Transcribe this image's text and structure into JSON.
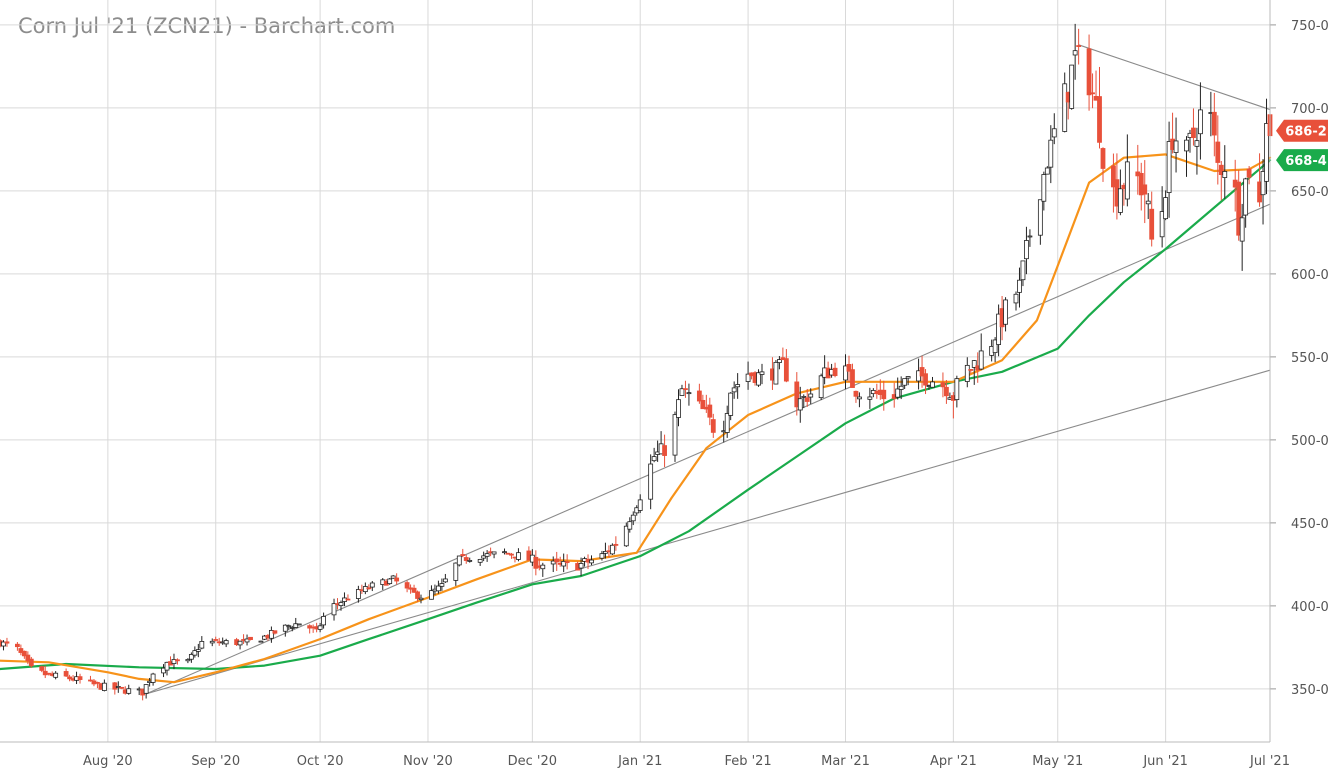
{
  "chart_data": {
    "type": "candlestick",
    "title": "Corn Jul '21 (ZCN21) - Barchart.com",
    "xlabel": "",
    "ylabel": "",
    "x_range": [
      "2020-07-01",
      "2021-07-01"
    ],
    "y_range": [
      318,
      765
    ],
    "y_ticks": [
      {
        "value": 350,
        "label": "350-0"
      },
      {
        "value": 400,
        "label": "400-0"
      },
      {
        "value": 450,
        "label": "450-0"
      },
      {
        "value": 500,
        "label": "500-0"
      },
      {
        "value": 550,
        "label": "550-0"
      },
      {
        "value": 600,
        "label": "600-0"
      },
      {
        "value": 650,
        "label": "650-0"
      },
      {
        "value": 700,
        "label": "700-0"
      },
      {
        "value": 750,
        "label": "750-0"
      }
    ],
    "x_ticks": [
      {
        "date": "2020-08-01",
        "label": "Aug '20"
      },
      {
        "date": "2020-09-01",
        "label": "Sep '20"
      },
      {
        "date": "2020-10-01",
        "label": "Oct '20"
      },
      {
        "date": "2020-11-01",
        "label": "Nov '20"
      },
      {
        "date": "2020-12-01",
        "label": "Dec '20"
      },
      {
        "date": "2021-01-01",
        "label": "Jan '21"
      },
      {
        "date": "2021-02-01",
        "label": "Feb '21"
      },
      {
        "date": "2021-03-01",
        "label": "Mar '21"
      },
      {
        "date": "2021-04-01",
        "label": "Apr '21"
      },
      {
        "date": "2021-05-01",
        "label": "May '21"
      },
      {
        "date": "2021-06-01",
        "label": "Jun '21"
      },
      {
        "date": "2021-07-01",
        "label": "Jul '21"
      }
    ],
    "grid": true,
    "colors": {
      "up": "#ffffff",
      "up_border": "#222222",
      "down": "#e8503a",
      "ma_fast": "#f7931a",
      "ma_slow": "#1aab4b",
      "trend": "#8a8a8a",
      "grid": "#d9d9d9"
    },
    "close_path": [
      [
        "2020-07-01",
        378
      ],
      [
        "2020-07-06",
        374
      ],
      [
        "2020-07-10",
        362
      ],
      [
        "2020-07-15",
        358
      ],
      [
        "2020-07-20",
        357
      ],
      [
        "2020-07-24",
        355
      ],
      [
        "2020-07-29",
        352
      ],
      [
        "2020-08-03",
        350
      ],
      [
        "2020-08-07",
        349
      ],
      [
        "2020-08-11",
        348
      ],
      [
        "2020-08-14",
        360
      ],
      [
        "2020-08-18",
        366
      ],
      [
        "2020-08-24",
        366
      ],
      [
        "2020-08-28",
        378
      ],
      [
        "2020-09-03",
        378
      ],
      [
        "2020-09-10",
        378
      ],
      [
        "2020-09-16",
        382
      ],
      [
        "2020-09-22",
        388
      ],
      [
        "2020-09-26",
        390
      ],
      [
        "2020-09-30",
        384
      ],
      [
        "2020-10-03",
        398
      ],
      [
        "2020-10-09",
        405
      ],
      [
        "2020-10-16",
        412
      ],
      [
        "2020-10-22",
        416
      ],
      [
        "2020-10-27",
        408
      ],
      [
        "2020-10-31",
        405
      ],
      [
        "2020-11-05",
        412
      ],
      [
        "2020-11-10",
        428
      ],
      [
        "2020-11-16",
        430
      ],
      [
        "2020-11-23",
        432
      ],
      [
        "2020-11-28",
        430
      ],
      [
        "2020-12-03",
        425
      ],
      [
        "2020-12-09",
        424
      ],
      [
        "2020-12-15",
        425
      ],
      [
        "2020-12-21",
        430
      ],
      [
        "2020-12-26",
        440
      ],
      [
        "2020-12-31",
        462
      ],
      [
        "2021-01-05",
        490
      ],
      [
        "2021-01-09",
        496
      ],
      [
        "2021-01-13",
        530
      ],
      [
        "2021-01-16",
        525
      ],
      [
        "2021-01-20",
        515
      ],
      [
        "2021-01-24",
        500
      ],
      [
        "2021-01-27",
        530
      ],
      [
        "2021-02-01",
        540
      ],
      [
        "2021-02-06",
        538
      ],
      [
        "2021-02-11",
        545
      ],
      [
        "2021-02-15",
        522
      ],
      [
        "2021-02-19",
        528
      ],
      [
        "2021-02-23",
        540
      ],
      [
        "2021-02-28",
        545
      ],
      [
        "2021-03-04",
        530
      ],
      [
        "2021-03-09",
        528
      ],
      [
        "2021-03-14",
        525
      ],
      [
        "2021-03-18",
        535
      ],
      [
        "2021-03-23",
        538
      ],
      [
        "2021-03-28",
        535
      ],
      [
        "2021-04-01",
        527
      ],
      [
        "2021-04-04",
        540
      ],
      [
        "2021-04-08",
        548
      ],
      [
        "2021-04-12",
        560
      ],
      [
        "2021-04-16",
        578
      ],
      [
        "2021-04-20",
        592
      ],
      [
        "2021-04-24",
        635
      ],
      [
        "2021-04-27",
        660
      ],
      [
        "2021-04-30",
        685
      ],
      [
        "2021-05-03",
        705
      ],
      [
        "2021-05-06",
        730
      ],
      [
        "2021-05-10",
        718
      ],
      [
        "2021-05-13",
        690
      ],
      [
        "2021-05-16",
        645
      ],
      [
        "2021-05-19",
        655
      ],
      [
        "2021-05-23",
        660
      ],
      [
        "2021-05-26",
        650
      ],
      [
        "2021-05-28",
        620
      ],
      [
        "2021-05-31",
        640
      ],
      [
        "2021-06-03",
        685
      ],
      [
        "2021-06-07",
        670
      ],
      [
        "2021-06-10",
        690
      ],
      [
        "2021-06-13",
        705
      ],
      [
        "2021-06-16",
        665
      ],
      [
        "2021-06-19",
        670
      ],
      [
        "2021-06-22",
        635
      ],
      [
        "2021-06-25",
        665
      ],
      [
        "2021-06-28",
        640
      ],
      [
        "2021-06-30",
        696
      ],
      [
        "2021-07-01",
        686.25
      ]
    ],
    "ma_fast": [
      [
        "2020-07-01",
        367
      ],
      [
        "2020-07-15",
        366
      ],
      [
        "2020-08-01",
        360
      ],
      [
        "2020-08-10",
        356
      ],
      [
        "2020-08-20",
        354
      ],
      [
        "2020-09-01",
        360
      ],
      [
        "2020-09-15",
        368
      ],
      [
        "2020-10-01",
        380
      ],
      [
        "2020-10-15",
        392
      ],
      [
        "2020-11-01",
        405
      ],
      [
        "2020-11-15",
        416
      ],
      [
        "2020-12-01",
        428
      ],
      [
        "2020-12-15",
        427
      ],
      [
        "2020-12-31",
        432
      ],
      [
        "2021-01-10",
        465
      ],
      [
        "2021-01-20",
        495
      ],
      [
        "2021-02-01",
        515
      ],
      [
        "2021-02-15",
        528
      ],
      [
        "2021-03-01",
        535
      ],
      [
        "2021-03-15",
        535
      ],
      [
        "2021-04-01",
        535
      ],
      [
        "2021-04-15",
        548
      ],
      [
        "2021-04-25",
        572
      ],
      [
        "2021-05-01",
        605
      ],
      [
        "2021-05-10",
        655
      ],
      [
        "2021-05-20",
        670
      ],
      [
        "2021-06-01",
        672
      ],
      [
        "2021-06-15",
        662
      ],
      [
        "2021-06-25",
        663
      ],
      [
        "2021-07-01",
        670
      ]
    ],
    "ma_slow": [
      [
        "2020-07-01",
        362
      ],
      [
        "2020-07-20",
        365
      ],
      [
        "2020-08-10",
        363
      ],
      [
        "2020-09-01",
        362
      ],
      [
        "2020-09-15",
        364
      ],
      [
        "2020-10-01",
        370
      ],
      [
        "2020-10-15",
        380
      ],
      [
        "2020-11-01",
        392
      ],
      [
        "2020-11-15",
        402
      ],
      [
        "2020-12-01",
        413
      ],
      [
        "2020-12-15",
        418
      ],
      [
        "2021-01-01",
        430
      ],
      [
        "2021-01-15",
        445
      ],
      [
        "2021-02-01",
        470
      ],
      [
        "2021-02-15",
        490
      ],
      [
        "2021-03-01",
        510
      ],
      [
        "2021-03-15",
        525
      ],
      [
        "2021-04-01",
        535
      ],
      [
        "2021-04-15",
        541
      ],
      [
        "2021-05-01",
        555
      ],
      [
        "2021-05-10",
        575
      ],
      [
        "2021-05-20",
        595
      ],
      [
        "2021-06-01",
        615
      ],
      [
        "2021-06-15",
        640
      ],
      [
        "2021-07-01",
        668.5
      ]
    ],
    "trendlines": [
      [
        [
          "2020-08-12",
          347
        ],
        [
          "2021-07-01",
          642
        ]
      ],
      [
        [
          "2020-08-12",
          347
        ],
        [
          "2021-07-01",
          542
        ]
      ],
      [
        [
          "2021-05-07",
          738
        ],
        [
          "2021-07-01",
          699
        ]
      ]
    ],
    "price_tags": [
      {
        "value": 686.25,
        "label": "686-2",
        "color": "#e8503a"
      },
      {
        "value": 668.5,
        "label": "668-4",
        "color": "#1aab4b"
      }
    ]
  }
}
